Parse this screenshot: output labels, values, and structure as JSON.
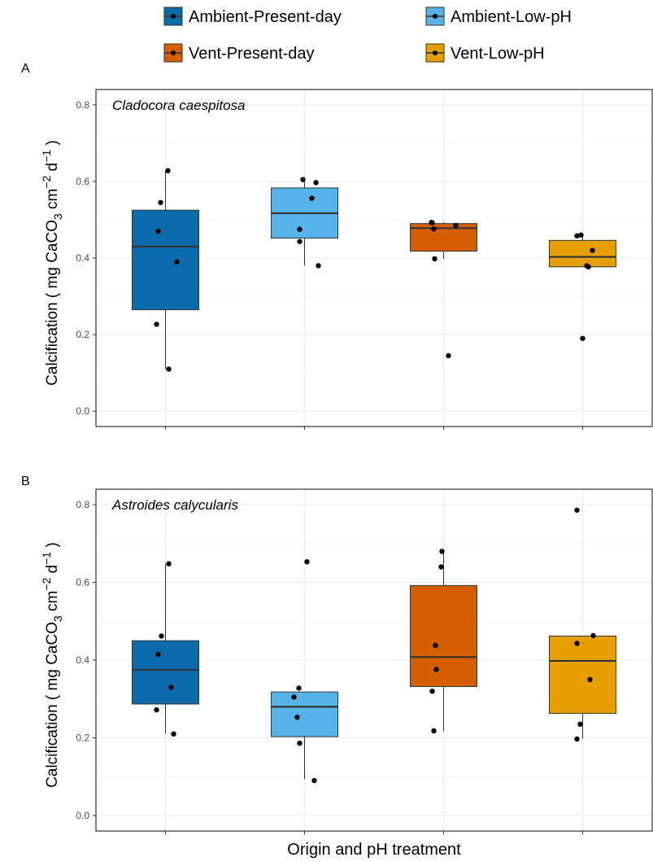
{
  "colors": {
    "Ambient-Present-day": "#0a6cac",
    "Ambient-Low-pH": "#56b4e9",
    "Vent-Present-day": "#d55e00",
    "Vent-Low-pH": "#e69f00"
  },
  "legend": {
    "items": [
      "Ambient-Present-day",
      "Ambient-Low-pH",
      "Vent-Present-day",
      "Vent-Low-pH"
    ]
  },
  "xlabel": "Origin and pH treatment",
  "ylabel": {
    "prefix": "Calcification ( mg CaCO",
    "sub": "3",
    "mid": " cm",
    "sup1": "−2",
    "mid2": " d",
    "sup2": "−1",
    "suffix": " )"
  },
  "chart_data": [
    {
      "type": "box",
      "panel": "A",
      "title": "Cladocora caespitosa",
      "ylim": [
        -0.04,
        0.84
      ],
      "yticks": [
        "0.0",
        "0.2",
        "0.4",
        "0.6",
        "0.8"
      ],
      "grid": true,
      "groups": [
        {
          "name": "Ambient-Present-day",
          "q1": 0.265,
          "median": 0.43,
          "q3": 0.525,
          "whisker_low": 0.11,
          "whisker_high": 0.63,
          "points": [
            0.628,
            0.545,
            0.47,
            0.39,
            0.227,
            0.11
          ]
        },
        {
          "name": "Ambient-Low-pH",
          "q1": 0.452,
          "median": 0.517,
          "q3": 0.583,
          "whisker_low": 0.38,
          "whisker_high": 0.608,
          "points": [
            0.605,
            0.597,
            0.556,
            0.475,
            0.443,
            0.38
          ]
        },
        {
          "name": "Vent-Present-day",
          "q1": 0.418,
          "median": 0.478,
          "q3": 0.49,
          "whisker_low": 0.398,
          "whisker_high": 0.493,
          "points": [
            0.493,
            0.492,
            0.485,
            0.476,
            0.398,
            0.145
          ]
        },
        {
          "name": "Vent-Low-pH",
          "q1": 0.377,
          "median": 0.403,
          "q3": 0.446,
          "whisker_low": 0.377,
          "whisker_high": 0.462,
          "points": [
            0.46,
            0.458,
            0.42,
            0.38,
            0.377,
            0.19
          ]
        }
      ]
    },
    {
      "type": "box",
      "panel": "B",
      "title": "Astroides calycularis",
      "ylim": [
        -0.04,
        0.84
      ],
      "yticks": [
        "0.0",
        "0.2",
        "0.4",
        "0.6",
        "0.8"
      ],
      "grid": true,
      "groups": [
        {
          "name": "Ambient-Present-day",
          "q1": 0.287,
          "median": 0.375,
          "q3": 0.45,
          "whisker_low": 0.21,
          "whisker_high": 0.648,
          "points": [
            0.648,
            0.462,
            0.415,
            0.33,
            0.272,
            0.21
          ]
        },
        {
          "name": "Ambient-Low-pH",
          "q1": 0.203,
          "median": 0.28,
          "q3": 0.318,
          "whisker_low": 0.093,
          "whisker_high": 0.318,
          "points": [
            0.653,
            0.328,
            0.305,
            0.253,
            0.186,
            0.09
          ]
        },
        {
          "name": "Vent-Present-day",
          "q1": 0.332,
          "median": 0.408,
          "q3": 0.592,
          "whisker_low": 0.217,
          "whisker_high": 0.68,
          "points": [
            0.68,
            0.64,
            0.438,
            0.376,
            0.32,
            0.218
          ]
        },
        {
          "name": "Vent-Low-pH",
          "q1": 0.263,
          "median": 0.398,
          "q3": 0.462,
          "whisker_low": 0.197,
          "whisker_high": 0.462,
          "points": [
            0.786,
            0.463,
            0.443,
            0.35,
            0.235,
            0.197
          ]
        }
      ]
    }
  ]
}
